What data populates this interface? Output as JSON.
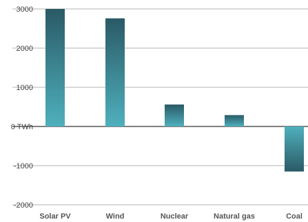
{
  "chart_data": {
    "type": "bar",
    "categories": [
      "Solar PV",
      "Wind",
      "Nuclear",
      "Natural gas",
      "Coal"
    ],
    "values": [
      3000,
      2760,
      560,
      290,
      -1150
    ],
    "ylim": [
      -2000,
      3000
    ],
    "yticks": [
      {
        "value": 3000,
        "label": "3000"
      },
      {
        "value": 2000,
        "label": "2000"
      },
      {
        "value": 1000,
        "label": "1000"
      },
      {
        "value": 0,
        "label": "0 TWh"
      },
      {
        "value": -1000,
        "label": "-1000"
      },
      {
        "value": -2000,
        "label": "-2000"
      }
    ],
    "grid": true,
    "colors": {
      "bar_top": "#2a5a66",
      "bar_bottom": "#4fb0bd",
      "grid": "#9a9a9a",
      "zero_line": "#333333"
    }
  }
}
